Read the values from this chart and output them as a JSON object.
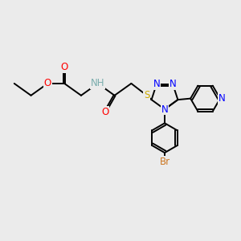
{
  "bg_color": "#EBEBEB",
  "atom_colors": {
    "O": "#FF0000",
    "N": "#0000FF",
    "S": "#CCAA00",
    "Br": "#CC7722",
    "H": "#7AADAD",
    "C": "#000000"
  },
  "bond_width": 1.4,
  "font_size": 8.5
}
